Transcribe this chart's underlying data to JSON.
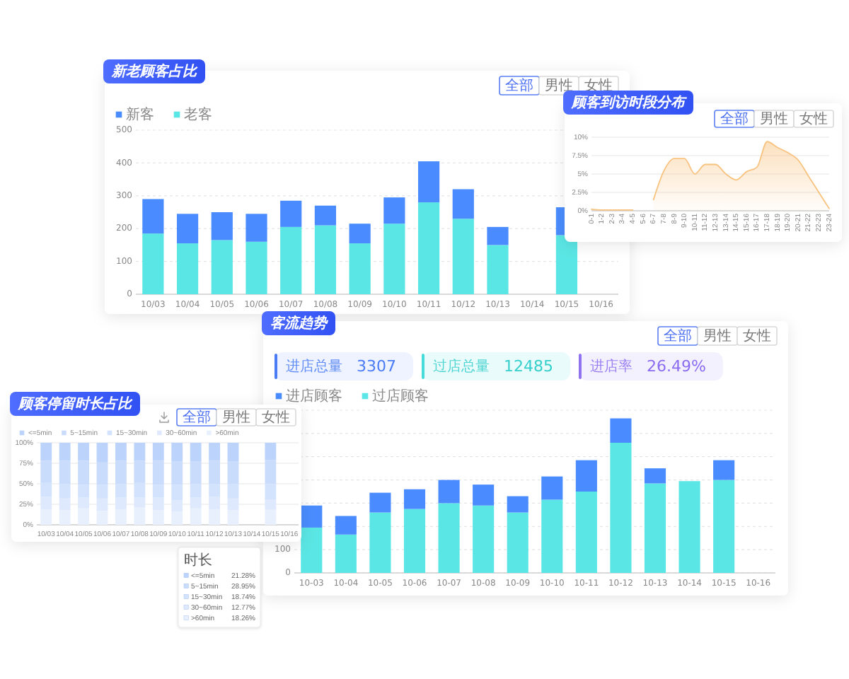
{
  "chart_data": [
    {
      "type": "bar",
      "title": "新老顾客占比",
      "annotations": [
        "全部",
        "男性",
        "女性"
      ],
      "categories": [
        "10/03",
        "10/04",
        "10/05",
        "10/06",
        "10/07",
        "10/08",
        "10/09",
        "10/10",
        "10/11",
        "10/12",
        "10/13",
        "10/14",
        "10/15",
        "10/16"
      ],
      "stacked": true,
      "series": [
        {
          "name": "老客",
          "color": "#5ae6e4",
          "values": [
            185,
            155,
            165,
            160,
            205,
            210,
            155,
            215,
            280,
            230,
            150,
            null,
            180,
            null
          ]
        },
        {
          "name": "新客",
          "color": "#4a8cff",
          "values": [
            105,
            90,
            85,
            85,
            80,
            60,
            60,
            80,
            125,
            90,
            55,
            null,
            85,
            null
          ]
        }
      ],
      "ylim": [
        0,
        500
      ],
      "yticks": [
        0,
        100,
        200,
        300,
        400,
        500
      ],
      "grid": "y",
      "legend": "top left"
    },
    {
      "type": "area",
      "title": "顾客到访时段分布",
      "annotations": [
        "全部",
        "男性",
        "女性"
      ],
      "categories": [
        "0-1",
        "1-2",
        "2-3",
        "3-4",
        "4-5",
        "5-6",
        "6-7",
        "7-8",
        "8-9",
        "9-10",
        "10-11",
        "11-12",
        "12-13",
        "13-14",
        "14-15",
        "15-16",
        "16-17",
        "17-18",
        "18-19",
        "19-20",
        "20-21",
        "21-22",
        "22-23",
        "23-24"
      ],
      "series": [
        {
          "color": "#f8c27f",
          "values": [
            0.2,
            0.1,
            0.1,
            0.1,
            0.1,
            null,
            1.5,
            5.4,
            7.1,
            7.1,
            5.0,
            6.3,
            6.3,
            5.0,
            4.2,
            5.3,
            5.9,
            9.4,
            8.6,
            7.9,
            6.9,
            4.7,
            2.5,
            0.3
          ]
        }
      ],
      "ylim": [
        0,
        10
      ],
      "yticks": [
        {
          "value": 0,
          "label": "0%"
        },
        {
          "value": 2.5,
          "label": "2.5%"
        },
        {
          "value": 5,
          "label": "5%"
        },
        {
          "value": 7.5,
          "label": "7.5%"
        },
        {
          "value": 10,
          "label": "10%"
        }
      ],
      "grid": "y"
    },
    {
      "type": "bar",
      "title": "客流趋势",
      "annotations": [
        "全部",
        "男性",
        "女性",
        "进店总量 3307",
        "过店总量 12485",
        "进店率 26.49%"
      ],
      "categories": [
        "10-03",
        "10-04",
        "10-05",
        "10-06",
        "10-07",
        "10-08",
        "10-09",
        "10-10",
        "10-11",
        "10-12",
        "10-13",
        "10-14",
        "10-15",
        "10-16"
      ],
      "stacked": true,
      "series": [
        {
          "name": "过店顾客",
          "color": "#5ae6e4",
          "values": [
            195,
            165,
            260,
            275,
            300,
            290,
            260,
            315,
            350,
            560,
            385,
            395,
            400,
            null
          ]
        },
        {
          "name": "进店顾客",
          "color": "#4a8cff",
          "values": [
            95,
            80,
            85,
            85,
            100,
            90,
            70,
            100,
            135,
            105,
            65,
            null,
            85,
            null
          ]
        }
      ],
      "ylim": [
        0,
        700
      ],
      "yticks": [
        0,
        100,
        {
          "value": 200,
          "label": null
        },
        {
          "value": 300,
          "label": null
        },
        {
          "value": 400,
          "label": null
        },
        {
          "value": 500,
          "label": null
        },
        {
          "value": 600,
          "label": null
        },
        {
          "value": 700,
          "label": null
        }
      ],
      "grid": "y",
      "legend": "top left"
    },
    {
      "type": "bar",
      "title": "顾客停留时长占比",
      "annotations": [
        "全部",
        "男性",
        "女性",
        "时长",
        "<=5min 21.28%",
        "5~15min 28.95%",
        "15~30min 18.74%",
        "30~60min 12.77%",
        ">60min 18.26%"
      ],
      "categories": [
        "10/03",
        "10/04",
        "10/05",
        "10/06",
        "10/07",
        "10/08",
        "10/09",
        "10/10",
        "10/11",
        "10/12",
        "10/13",
        "10/14",
        "10/15",
        "10/16"
      ],
      "stacked": true,
      "series": [
        {
          "name": ">60min",
          "color": "#e8f0fe",
          "values": [
            19,
            18,
            20,
            17,
            19,
            21,
            18,
            16,
            20,
            19,
            18,
            null,
            18.26,
            null
          ]
        },
        {
          "name": "30~60min",
          "color": "#dfe9fd",
          "values": [
            15,
            14,
            13,
            15,
            14,
            12,
            15,
            14,
            13,
            15,
            14,
            null,
            12.77,
            null
          ]
        },
        {
          "name": "15~30min",
          "color": "#d4e3fd",
          "values": [
            17,
            18,
            16,
            17,
            17,
            18,
            16,
            19,
            17,
            16,
            18,
            null,
            18.74,
            null
          ]
        },
        {
          "name": "5~15min",
          "color": "#cadcfc",
          "values": [
            27,
            28,
            29,
            27,
            28,
            27,
            29,
            28,
            27,
            28,
            27,
            null,
            28.95,
            null
          ]
        },
        {
          "name": "<=5min",
          "color": "#bcd3fb",
          "values": [
            22,
            22,
            22,
            24,
            22,
            22,
            22,
            23,
            23,
            22,
            23,
            null,
            21.28,
            null
          ]
        }
      ],
      "ylim": [
        0,
        100
      ],
      "yticks": [
        {
          "value": 0,
          "label": "0%"
        },
        {
          "value": 25,
          "label": "25%"
        },
        {
          "value": 50,
          "label": "50%"
        },
        {
          "value": 75,
          "label": "75%"
        },
        {
          "value": 100,
          "label": "100%"
        }
      ],
      "grid": "y",
      "legend": "top left"
    }
  ]
}
